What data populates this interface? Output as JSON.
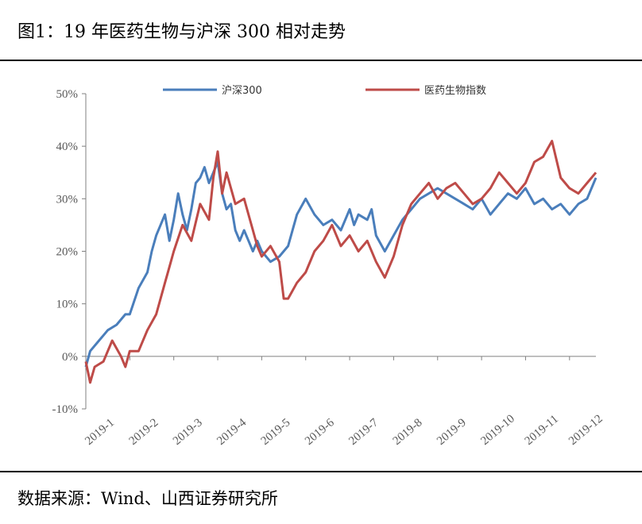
{
  "figure": {
    "title": "图1：19 年医药生物与沪深 300 相对走势",
    "source": "数据来源：Wind、山西证券研究所"
  },
  "colors": {
    "hs300": "#4A7EBB",
    "pharma": "#BE4B48",
    "axis": "#808080",
    "tick_text": "#595959"
  },
  "chart_data": {
    "type": "line",
    "title": "19 年医药生物与沪深 300 相对走势",
    "xlabel": "",
    "ylabel": "",
    "ylim": [
      -10,
      50
    ],
    "y_ticks": [
      "-10%",
      "0%",
      "10%",
      "20%",
      "30%",
      "40%",
      "50%"
    ],
    "y_tick_values": [
      -10,
      0,
      10,
      20,
      30,
      40,
      50
    ],
    "x_tick_labels": [
      "2019-1",
      "2019-2",
      "2019-3",
      "2019-4",
      "2019-5",
      "2019-6",
      "2019-7",
      "2019-8",
      "2019-9",
      "2019-10",
      "2019-11",
      "2019-12"
    ],
    "x_range": [
      0,
      11.6
    ],
    "grid": false,
    "legend": "top",
    "series": [
      {
        "name": "沪深300",
        "color": "#4A7EBB",
        "x": [
          0,
          0.1,
          0.3,
          0.5,
          0.7,
          0.9,
          1.0,
          1.2,
          1.4,
          1.5,
          1.6,
          1.8,
          1.9,
          2.0,
          2.1,
          2.2,
          2.3,
          2.4,
          2.5,
          2.6,
          2.7,
          2.8,
          2.9,
          3.0,
          3.1,
          3.2,
          3.3,
          3.4,
          3.5,
          3.6,
          3.7,
          3.8,
          3.9,
          4.0,
          4.2,
          4.4,
          4.6,
          4.8,
          5.0,
          5.2,
          5.4,
          5.6,
          5.8,
          6.0,
          6.1,
          6.2,
          6.4,
          6.5,
          6.6,
          6.8,
          7.0,
          7.2,
          7.4,
          7.6,
          7.8,
          8.0,
          8.2,
          8.4,
          8.6,
          8.8,
          9.0,
          9.2,
          9.4,
          9.6,
          9.8,
          10.0,
          10.2,
          10.4,
          10.6,
          10.8,
          11.0,
          11.2,
          11.4,
          11.6
        ],
        "values": [
          -2,
          1,
          3,
          5,
          6,
          8,
          8,
          13,
          16,
          20,
          23,
          27,
          22,
          26,
          31,
          27,
          24,
          28,
          33,
          34,
          36,
          33,
          35,
          37,
          31,
          28,
          29,
          24,
          22,
          24,
          22,
          20,
          22,
          20,
          18,
          19,
          21,
          27,
          30,
          27,
          25,
          26,
          24,
          28,
          25,
          27,
          26,
          28,
          23,
          20,
          23,
          26,
          28,
          30,
          31,
          32,
          31,
          30,
          29,
          28,
          30,
          27,
          29,
          31,
          30,
          32,
          29,
          30,
          28,
          29,
          27,
          29,
          30,
          34
        ]
      },
      {
        "name": "医药生物指数",
        "color": "#BE4B48",
        "x": [
          0,
          0.1,
          0.2,
          0.4,
          0.6,
          0.8,
          0.9,
          1.0,
          1.2,
          1.4,
          1.6,
          1.8,
          1.9,
          2.0,
          2.2,
          2.4,
          2.6,
          2.8,
          2.9,
          3.0,
          3.1,
          3.2,
          3.4,
          3.6,
          3.8,
          3.9,
          4.0,
          4.2,
          4.4,
          4.5,
          4.6,
          4.8,
          5.0,
          5.2,
          5.4,
          5.6,
          5.8,
          6.0,
          6.2,
          6.4,
          6.6,
          6.8,
          7.0,
          7.2,
          7.4,
          7.6,
          7.8,
          8.0,
          8.2,
          8.4,
          8.6,
          8.8,
          9.0,
          9.2,
          9.4,
          9.6,
          9.8,
          10.0,
          10.2,
          10.4,
          10.6,
          10.8,
          11.0,
          11.2,
          11.4,
          11.6
        ],
        "values": [
          -1,
          -5,
          -2,
          -1,
          3,
          0,
          -2,
          1,
          1,
          5,
          8,
          14,
          17,
          20,
          25,
          22,
          29,
          26,
          34,
          39,
          31,
          35,
          29,
          30,
          24,
          21,
          19,
          21,
          18,
          11,
          11,
          14,
          16,
          20,
          22,
          25,
          21,
          23,
          20,
          22,
          18,
          15,
          19,
          25,
          29,
          31,
          33,
          30,
          32,
          33,
          31,
          29,
          30,
          32,
          35,
          33,
          31,
          33,
          37,
          38,
          41,
          34,
          32,
          31,
          33,
          35
        ]
      }
    ]
  }
}
